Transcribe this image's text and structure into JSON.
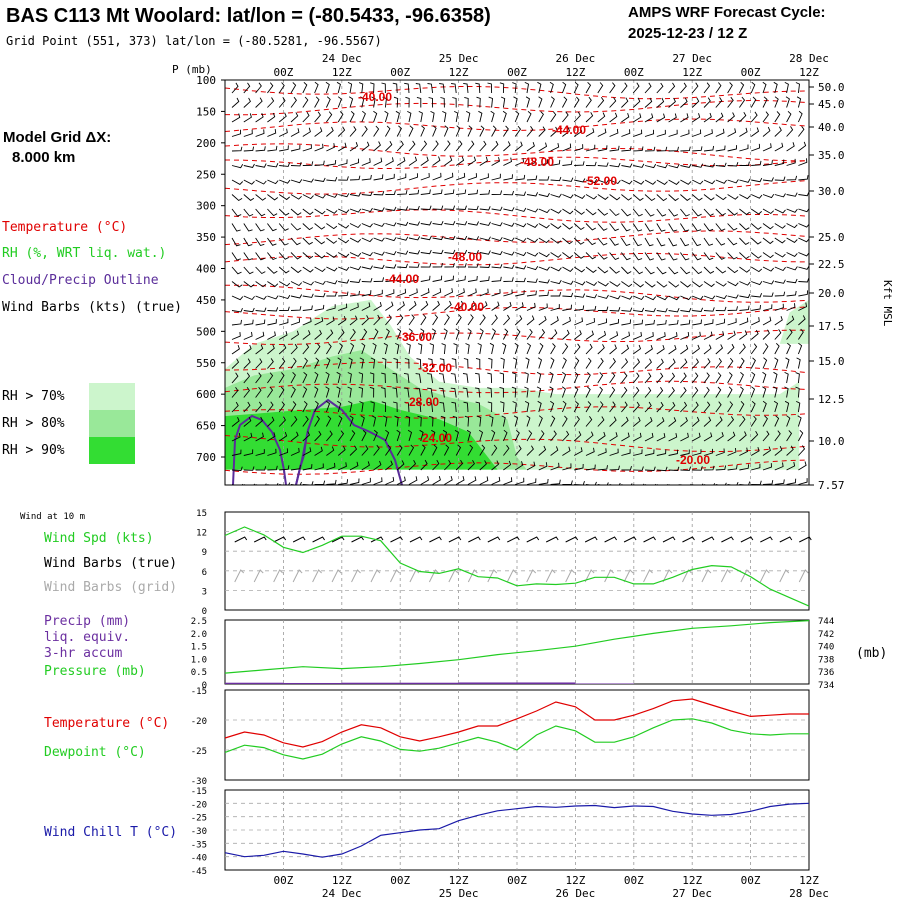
{
  "header": {
    "title": "BAS C113 Mt Woolard:  lat/lon = (-80.5433, -96.6358)",
    "subtitle": "Grid Point (551, 373) lat/lon = (-80.5281, -96.5567)",
    "cycle_line1": "AMPS WRF Forecast Cycle:",
    "cycle_line2": "2025-12-23 / 12  Z"
  },
  "left_panel": {
    "grid_dx_label": "Model Grid ΔX:",
    "grid_dx_value": "8.000 km",
    "legend": {
      "temperature": "Temperature (°C)",
      "rh": "RH (%, WRT liq. wat.)",
      "cloud": "Cloud/Precip Outline",
      "wind": "Wind Barbs (kts) (true)"
    },
    "rh_keys": [
      {
        "label": "RH > 70%",
        "color": "#ccf5cc"
      },
      {
        "label": "RH > 80%",
        "color": "#99e899"
      },
      {
        "label": "RH > 90%",
        "color": "#33dd33"
      }
    ]
  },
  "colors": {
    "temperature": "#e00000",
    "dewpoint": "#22cc22",
    "wind_speed": "#22cc22",
    "pressure": "#22cc22",
    "precip": "#6b2fa0",
    "wind_chill": "#1a1aa8",
    "cloud_outline": "#5a2d9a",
    "grid_barbs": "#aaaaaa"
  },
  "time_axis": {
    "hour_labels": [
      "00Z",
      "12Z",
      "00Z",
      "12Z",
      "00Z",
      "12Z",
      "00Z",
      "12Z",
      "00Z",
      "12Z"
    ],
    "date_labels": [
      "24 Dec",
      "25 Dec",
      "26 Dec",
      "27 Dec",
      "28 Dec"
    ],
    "forecast_hours": [
      0,
      120
    ]
  },
  "chart_data": [
    {
      "type": "contour",
      "name": "Time-height cross section",
      "pressure_axis_label": "P (mb)",
      "pressure_levels": [
        100,
        150,
        200,
        250,
        300,
        350,
        400,
        450,
        500,
        550,
        600,
        650,
        700
      ],
      "height_axis_label": "Kft MSL",
      "height_ticks": [
        "50.0",
        "45.0",
        "40.0",
        "35.0",
        "30.0",
        "25.0",
        "22.5",
        "20.0",
        "17.5",
        "15.0",
        "12.5",
        "10.0",
        "7.57"
      ],
      "temperature_contour_labels": [
        "-40.00",
        "-44.00",
        "-48.00",
        "-52.00",
        "-48.00",
        "-44.00",
        "-40.00",
        "-36.00",
        "-32.00",
        "-28.00",
        "-24.00",
        "-20.00"
      ]
    },
    {
      "type": "line",
      "name": "Wind at 10 m",
      "header": "Wind at 10 m",
      "labels": [
        "Wind Spd (kts)",
        "Wind Barbs (true)",
        "Wind Barbs (grid)"
      ],
      "yticks": [
        "15",
        "12",
        "9",
        "6",
        "3",
        "0"
      ],
      "ylim": [
        0,
        15
      ],
      "x": [
        0,
        4,
        8,
        12,
        16,
        20,
        24,
        28,
        32,
        36,
        40,
        44,
        48,
        52,
        56,
        60,
        64,
        68,
        72,
        76,
        80,
        84,
        88,
        92,
        96,
        100,
        104,
        108,
        112,
        116,
        120
      ],
      "series": [
        {
          "name": "Wind Spd (kts)",
          "values": [
            11.4,
            12.7,
            11.5,
            9.6,
            8.8,
            9.9,
            11.3,
            11.3,
            10.6,
            7.2,
            5.9,
            5.6,
            6.3,
            5.1,
            4.9,
            3.7,
            4.0,
            3.9,
            4.1,
            5.0,
            5.0,
            4.0,
            4.0,
            5.0,
            6.2,
            6.8,
            6.6,
            5.1,
            3.2,
            1.9,
            0.6
          ]
        }
      ]
    },
    {
      "type": "line",
      "name": "Precip and Pressure",
      "labels": [
        "Precip (mm)",
        "liq. equiv.",
        "3-hr accum",
        "Pressure (mb)"
      ],
      "units_label": "(mb)",
      "yticks_left": [
        "2.5",
        "2.0",
        "1.5",
        "1.0",
        "0.5",
        "0"
      ],
      "yticks_right": [
        "744",
        "742",
        "740",
        "738",
        "736",
        "734"
      ],
      "precip_ylim": [
        0,
        2.5
      ],
      "pressure_ylim": [
        734,
        744
      ],
      "precip_x": [
        0,
        12,
        24,
        36,
        48,
        60,
        72,
        84,
        96,
        108,
        120
      ],
      "precip_values": [
        0.05,
        0.04,
        0.05,
        0.05,
        0.06,
        0.06,
        0.02,
        0,
        0,
        0,
        0
      ],
      "pressure_x": [
        0,
        8,
        16,
        24,
        32,
        40,
        48,
        56,
        64,
        72,
        80,
        88,
        96,
        104,
        112,
        120
      ],
      "pressure_values": [
        735.7,
        736.2,
        736.7,
        736.4,
        736.7,
        737.2,
        737.8,
        738.6,
        739.2,
        739.9,
        741.0,
        741.9,
        742.7,
        743.1,
        743.6,
        743.9
      ]
    },
    {
      "type": "line",
      "name": "Temperature and Dewpoint",
      "labels": [
        "Temperature (°C)",
        "Dewpoint (°C)"
      ],
      "yticks": [
        "-15",
        "-20",
        "-25",
        "-30"
      ],
      "ylim": [
        -30,
        -15
      ],
      "x": [
        0,
        4,
        8,
        12,
        16,
        20,
        24,
        28,
        32,
        36,
        40,
        44,
        48,
        52,
        56,
        60,
        64,
        68,
        72,
        76,
        80,
        84,
        88,
        92,
        96,
        100,
        104,
        108,
        112,
        116,
        120
      ],
      "series": [
        {
          "name": "Temperature (°C)",
          "values": [
            -23.0,
            -22.0,
            -22.5,
            -23.8,
            -24.5,
            -23.6,
            -22.0,
            -20.8,
            -21.3,
            -22.8,
            -23.5,
            -22.8,
            -22.0,
            -21.0,
            -21.0,
            -19.8,
            -18.5,
            -17.0,
            -17.8,
            -20.0,
            -20.0,
            -19.2,
            -18.1,
            -16.8,
            -16.5,
            -17.5,
            -18.5,
            -19.4,
            -19.2,
            -19.0,
            -19.0
          ]
        },
        {
          "name": "Dewpoint (°C)",
          "values": [
            -25.4,
            -24.2,
            -24.6,
            -25.8,
            -26.5,
            -25.7,
            -24.0,
            -22.8,
            -23.5,
            -24.9,
            -25.2,
            -24.7,
            -23.8,
            -22.9,
            -23.7,
            -25.0,
            -22.5,
            -21.0,
            -21.8,
            -23.7,
            -23.7,
            -22.8,
            -21.3,
            -20.0,
            -19.8,
            -20.5,
            -21.7,
            -22.3,
            -22.5,
            -22.3,
            -22.3
          ]
        }
      ]
    },
    {
      "type": "line",
      "name": "Wind Chill",
      "labels": [
        "Wind Chill T (°C)"
      ],
      "yticks": [
        "-15",
        "-20",
        "-25",
        "-30",
        "-35",
        "-40",
        "-45"
      ],
      "ylim": [
        -45,
        -15
      ],
      "x": [
        0,
        4,
        8,
        12,
        16,
        20,
        24,
        28,
        32,
        36,
        40,
        44,
        48,
        52,
        56,
        60,
        64,
        68,
        72,
        76,
        80,
        84,
        88,
        92,
        96,
        100,
        104,
        108,
        112,
        116,
        120
      ],
      "series": [
        {
          "name": "Wind Chill T (°C)",
          "values": [
            -38.5,
            -40.0,
            -39.5,
            -38.0,
            -39.0,
            -40.2,
            -39.0,
            -36.0,
            -32.0,
            -31.0,
            -30.0,
            -29.5,
            -26.5,
            -24.5,
            -22.8,
            -22.0,
            -21.2,
            -21.5,
            -21.0,
            -20.8,
            -21.6,
            -21.0,
            -21.2,
            -23.0,
            -24.0,
            -24.5,
            -24.2,
            -23.0,
            -21.2,
            -20.3,
            -20.0
          ]
        }
      ]
    }
  ]
}
